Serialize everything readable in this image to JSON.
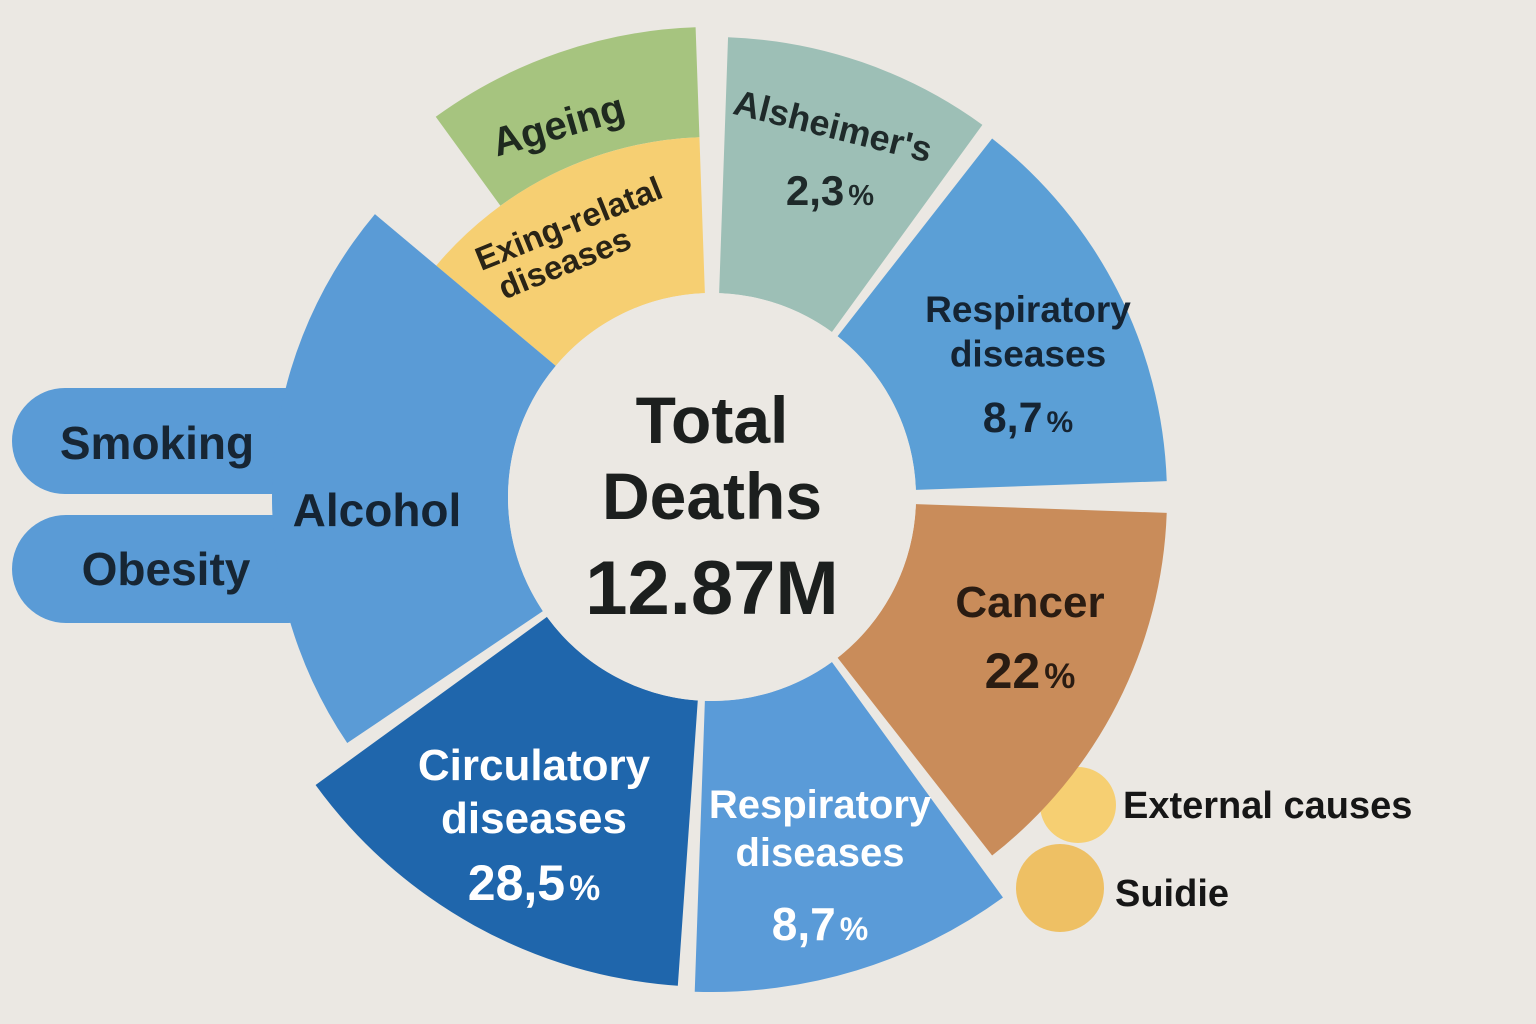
{
  "chart_data": {
    "type": "pie",
    "title": "Total Deaths",
    "total": "12.87M",
    "background": "#ebe8e3",
    "segments": [
      {
        "key": "ageing",
        "name": "Ageing",
        "value_label": "",
        "color": "#a6c47f",
        "text_color": "#1f2a1f"
      },
      {
        "key": "age-related",
        "name": "Exing-relatal diseases",
        "line1": "Exing-relatal",
        "line2": "diseases",
        "value_label": "",
        "color": "#f6cf72",
        "text_color": "#2a2416"
      },
      {
        "key": "alzheimers",
        "name": "Alsheimer's",
        "value": 2.3,
        "value_label": "2,3",
        "color": "#9dbfb6",
        "text_color": "#1f2a2a"
      },
      {
        "key": "respiratory-1",
        "name": "Respiratory diseases",
        "line1": "Respiratory",
        "line2": "diseases",
        "value": 8.7,
        "value_label": "8,7",
        "color": "#5b9fd6",
        "text_color": "#152433"
      },
      {
        "key": "cancer",
        "name": "Cancer",
        "value": 22,
        "value_label": "22",
        "color": "#c98c5a",
        "text_color": "#2a1c12"
      },
      {
        "key": "respiratory-2",
        "name": "Respiratory diseases",
        "line1": "Respiratory",
        "line2": "diseases",
        "value": 8.7,
        "value_label": "8,7",
        "color": "#5a9bd8",
        "text_color": "#ffffff"
      },
      {
        "key": "circulatory",
        "name": "Circulatory diseases",
        "line1": "Circulatory",
        "line2": "diseases",
        "value": 28.5,
        "value_label": "28,5",
        "color": "#1f66ac",
        "text_color": "#ffffff"
      },
      {
        "key": "alcohol",
        "name": "Alcohol",
        "value_label": "",
        "color": "#5a9bd6",
        "text_color": "#152433"
      }
    ],
    "percent_sign": "%",
    "side_labels": {
      "smoking": "Smoking",
      "obesity": "Obesity",
      "external": "External causes",
      "suicide": "Suidie"
    },
    "side_colors": {
      "left_tabs": "#5a9bd6",
      "external": "#f6cf72",
      "suicide": "#eec064"
    }
  }
}
